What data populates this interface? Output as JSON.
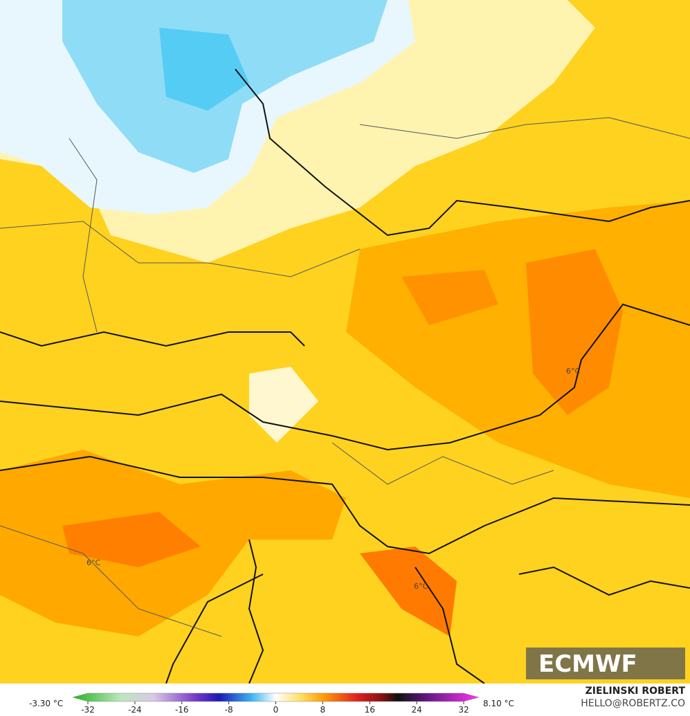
{
  "map": {
    "labels": [
      "6°C",
      "6°C",
      "6°C"
    ]
  },
  "logo": "ECMWF",
  "colorbar": {
    "min_label": "-3.30 °C",
    "max_label": "8.10 °C",
    "ticks": [
      -32,
      -24,
      -16,
      -8,
      0,
      8,
      16,
      24,
      32
    ]
  },
  "credit": {
    "author": "ZIELINSKI ROBERT",
    "contact": "HELLO@ROBERTZ.CO"
  }
}
